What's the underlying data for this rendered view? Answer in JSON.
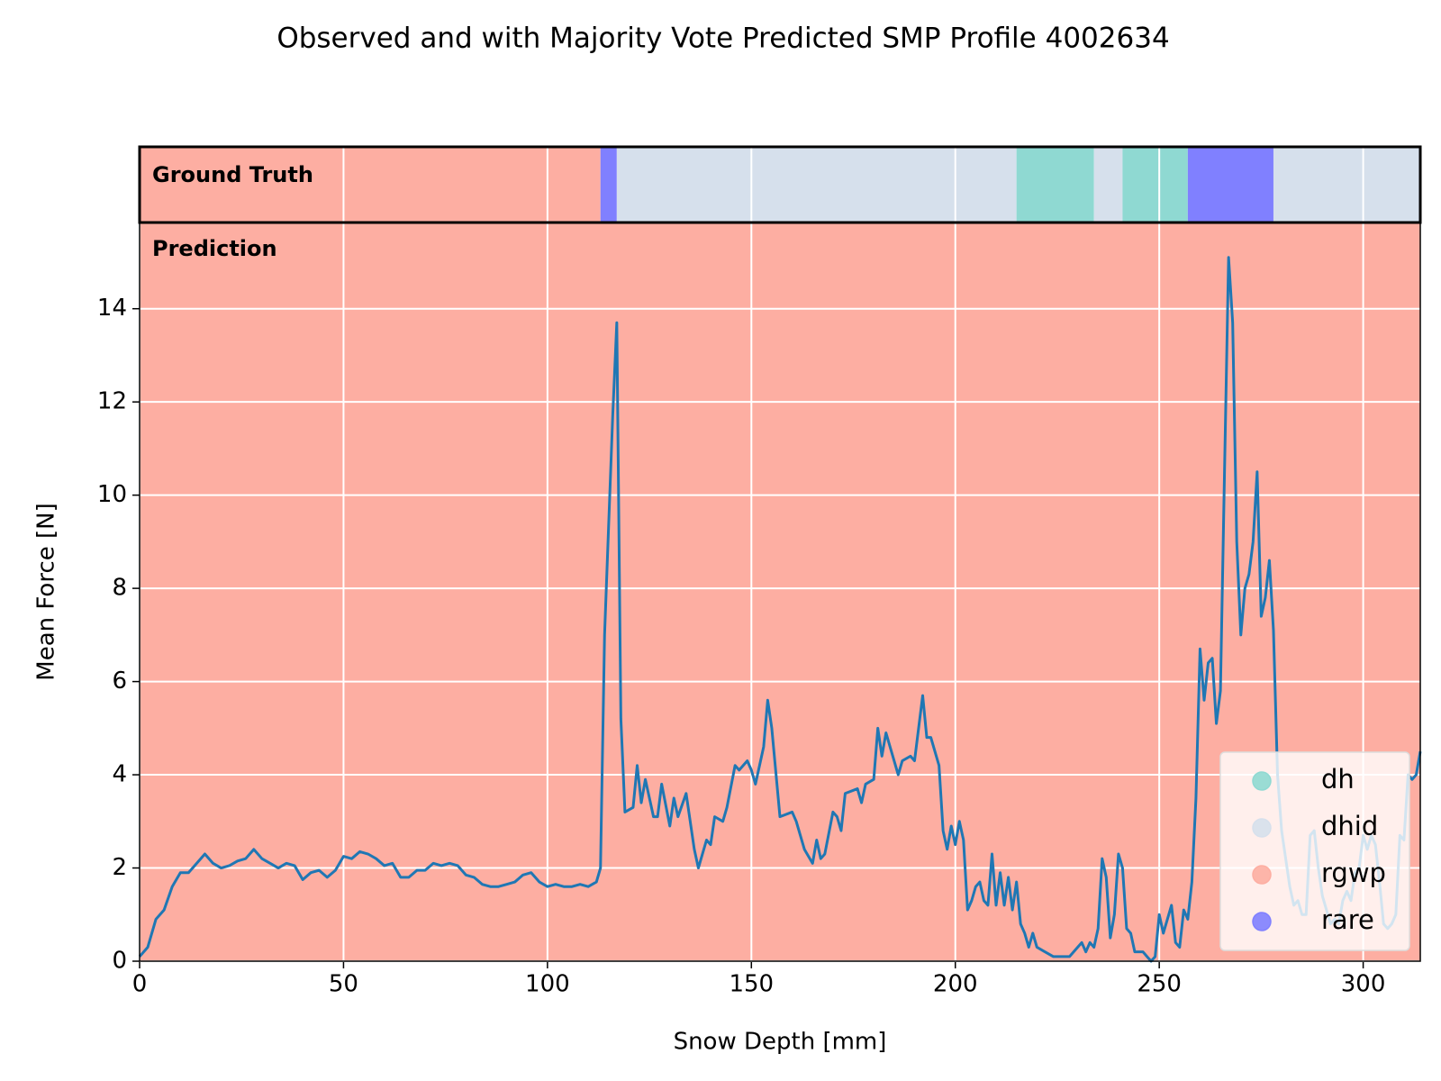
{
  "chart_data": {
    "type": "line",
    "title": "Observed and with Majority Vote Predicted SMP Profile 4002634",
    "xlabel": "Snow Depth [mm]",
    "ylabel": "Mean Force [N]",
    "ground_truth_label": "Ground Truth",
    "prediction_label": "Prediction",
    "xlim": [
      0,
      314
    ],
    "xticks": [
      0,
      50,
      100,
      150,
      200,
      250,
      300
    ],
    "ylim": [
      0,
      15.85
    ],
    "yticks": [
      0,
      2,
      4,
      6,
      8,
      10,
      12,
      14
    ],
    "grid": true,
    "legend": "lower right",
    "line_color": "#1f77b4",
    "classes": [
      {
        "name": "dh",
        "color": "#8fd9d2"
      },
      {
        "name": "dhid",
        "color": "#d6e0ec"
      },
      {
        "name": "rgwp",
        "color": "#fdaea2"
      },
      {
        "name": "rare",
        "color": "#8080ff"
      }
    ],
    "ground_truth_segments": [
      {
        "class": "rgwp",
        "start": 0,
        "end": 113
      },
      {
        "class": "rare",
        "start": 113,
        "end": 117
      },
      {
        "class": "dhid",
        "start": 117,
        "end": 215
      },
      {
        "class": "dh",
        "start": 215,
        "end": 234
      },
      {
        "class": "dhid",
        "start": 234,
        "end": 241
      },
      {
        "class": "dh",
        "start": 241,
        "end": 257
      },
      {
        "class": "rare",
        "start": 257,
        "end": 278
      },
      {
        "class": "dhid",
        "start": 278,
        "end": 314
      }
    ],
    "prediction_segments": [
      {
        "class": "rgwp",
        "start": 0,
        "end": 314
      }
    ],
    "x": [
      0,
      2,
      4,
      6,
      8,
      10,
      12,
      14,
      16,
      18,
      20,
      22,
      24,
      26,
      28,
      30,
      32,
      34,
      36,
      38,
      40,
      42,
      44,
      46,
      48,
      50,
      52,
      54,
      56,
      58,
      60,
      62,
      64,
      66,
      68,
      70,
      72,
      74,
      76,
      78,
      80,
      82,
      84,
      86,
      88,
      90,
      92,
      94,
      96,
      98,
      100,
      102,
      104,
      106,
      108,
      110,
      112,
      113,
      114,
      116,
      117,
      118,
      119,
      121,
      122,
      123,
      124,
      126,
      127,
      128,
      130,
      131,
      132,
      134,
      135,
      136,
      137,
      139,
      140,
      141,
      143,
      144,
      146,
      147,
      149,
      150,
      151,
      153,
      154,
      155,
      157,
      160,
      161,
      163,
      165,
      166,
      167,
      168,
      170,
      171,
      172,
      173,
      176,
      177,
      178,
      180,
      181,
      182,
      183,
      184,
      186,
      187,
      189,
      190,
      192,
      193,
      194,
      196,
      197,
      198,
      199,
      200,
      201,
      202,
      203,
      204,
      205,
      206,
      207,
      208,
      209,
      210,
      211,
      212,
      213,
      214,
      215,
      216,
      217,
      218,
      219,
      220,
      222,
      224,
      226,
      228,
      230,
      231,
      232,
      233,
      234,
      235,
      236,
      237,
      238,
      239,
      240,
      241,
      242,
      243,
      244,
      246,
      247,
      248,
      249,
      250,
      251,
      252,
      253,
      254,
      255,
      256,
      257,
      258,
      259,
      260,
      261,
      262,
      263,
      264,
      265,
      266,
      267,
      268,
      269,
      270,
      271,
      272,
      273,
      274,
      275,
      276,
      277,
      278,
      279,
      280,
      281,
      282,
      283,
      284,
      285,
      286,
      287,
      288,
      289,
      290,
      291,
      292,
      293,
      294,
      295,
      296,
      297,
      298,
      299,
      300,
      301,
      302,
      303,
      304,
      305,
      306,
      307,
      308,
      309,
      310,
      311,
      312,
      313,
      314
    ],
    "values": [
      0.1,
      0.3,
      0.9,
      1.1,
      1.6,
      1.9,
      1.9,
      2.1,
      2.3,
      2.1,
      2.0,
      2.05,
      2.15,
      2.2,
      2.4,
      2.2,
      2.1,
      2.0,
      2.1,
      2.05,
      1.75,
      1.9,
      1.95,
      1.8,
      1.95,
      2.25,
      2.2,
      2.35,
      2.3,
      2.2,
      2.05,
      2.1,
      1.8,
      1.8,
      1.95,
      1.95,
      2.1,
      2.05,
      2.1,
      2.05,
      1.85,
      1.8,
      1.65,
      1.6,
      1.6,
      1.65,
      1.7,
      1.85,
      1.9,
      1.7,
      1.6,
      1.65,
      1.6,
      1.6,
      1.65,
      1.6,
      1.7,
      2.0,
      7.0,
      11.7,
      13.7,
      5.2,
      3.2,
      3.3,
      4.2,
      3.4,
      3.9,
      3.1,
      3.1,
      3.8,
      2.9,
      3.5,
      3.1,
      3.6,
      3.0,
      2.4,
      2.0,
      2.6,
      2.5,
      3.1,
      3.0,
      3.3,
      4.2,
      4.1,
      4.3,
      4.1,
      3.8,
      4.6,
      5.6,
      5.0,
      3.1,
      3.2,
      3.0,
      2.4,
      2.1,
      2.6,
      2.2,
      2.3,
      3.2,
      3.1,
      2.8,
      3.6,
      3.7,
      3.4,
      3.8,
      3.9,
      5.0,
      4.4,
      4.9,
      4.6,
      4.0,
      4.3,
      4.4,
      4.3,
      5.7,
      4.8,
      4.8,
      4.2,
      2.8,
      2.4,
      2.9,
      2.5,
      3.0,
      2.6,
      1.1,
      1.3,
      1.6,
      1.7,
      1.3,
      1.2,
      2.3,
      1.2,
      1.9,
      1.2,
      1.8,
      1.1,
      1.7,
      0.8,
      0.6,
      0.3,
      0.6,
      0.3,
      0.2,
      0.1,
      0.1,
      0.1,
      0.3,
      0.4,
      0.2,
      0.4,
      0.3,
      0.7,
      2.2,
      1.8,
      0.5,
      1.0,
      2.3,
      2.0,
      0.7,
      0.6,
      0.2,
      0.2,
      0.1,
      0.0,
      0.1,
      1.0,
      0.6,
      0.9,
      1.2,
      0.4,
      0.3,
      1.1,
      0.9,
      1.7,
      3.5,
      6.7,
      5.6,
      6.4,
      6.5,
      5.1,
      5.8,
      10.5,
      15.1,
      13.7,
      9.0,
      7.0,
      8.0,
      8.3,
      9.0,
      10.5,
      7.4,
      7.8,
      8.6,
      7.1,
      4.0,
      2.8,
      2.2,
      1.6,
      1.2,
      1.3,
      1.0,
      1.0,
      2.7,
      2.8,
      2.0,
      1.4,
      1.1,
      0.8,
      0.9,
      0.8,
      1.3,
      1.5,
      1.3,
      1.9,
      2.0,
      2.7,
      2.4,
      2.7,
      2.5,
      1.7,
      0.8,
      0.7,
      0.8,
      1.0,
      2.7,
      2.6,
      4.0,
      3.9,
      4.0,
      4.5
    ]
  }
}
